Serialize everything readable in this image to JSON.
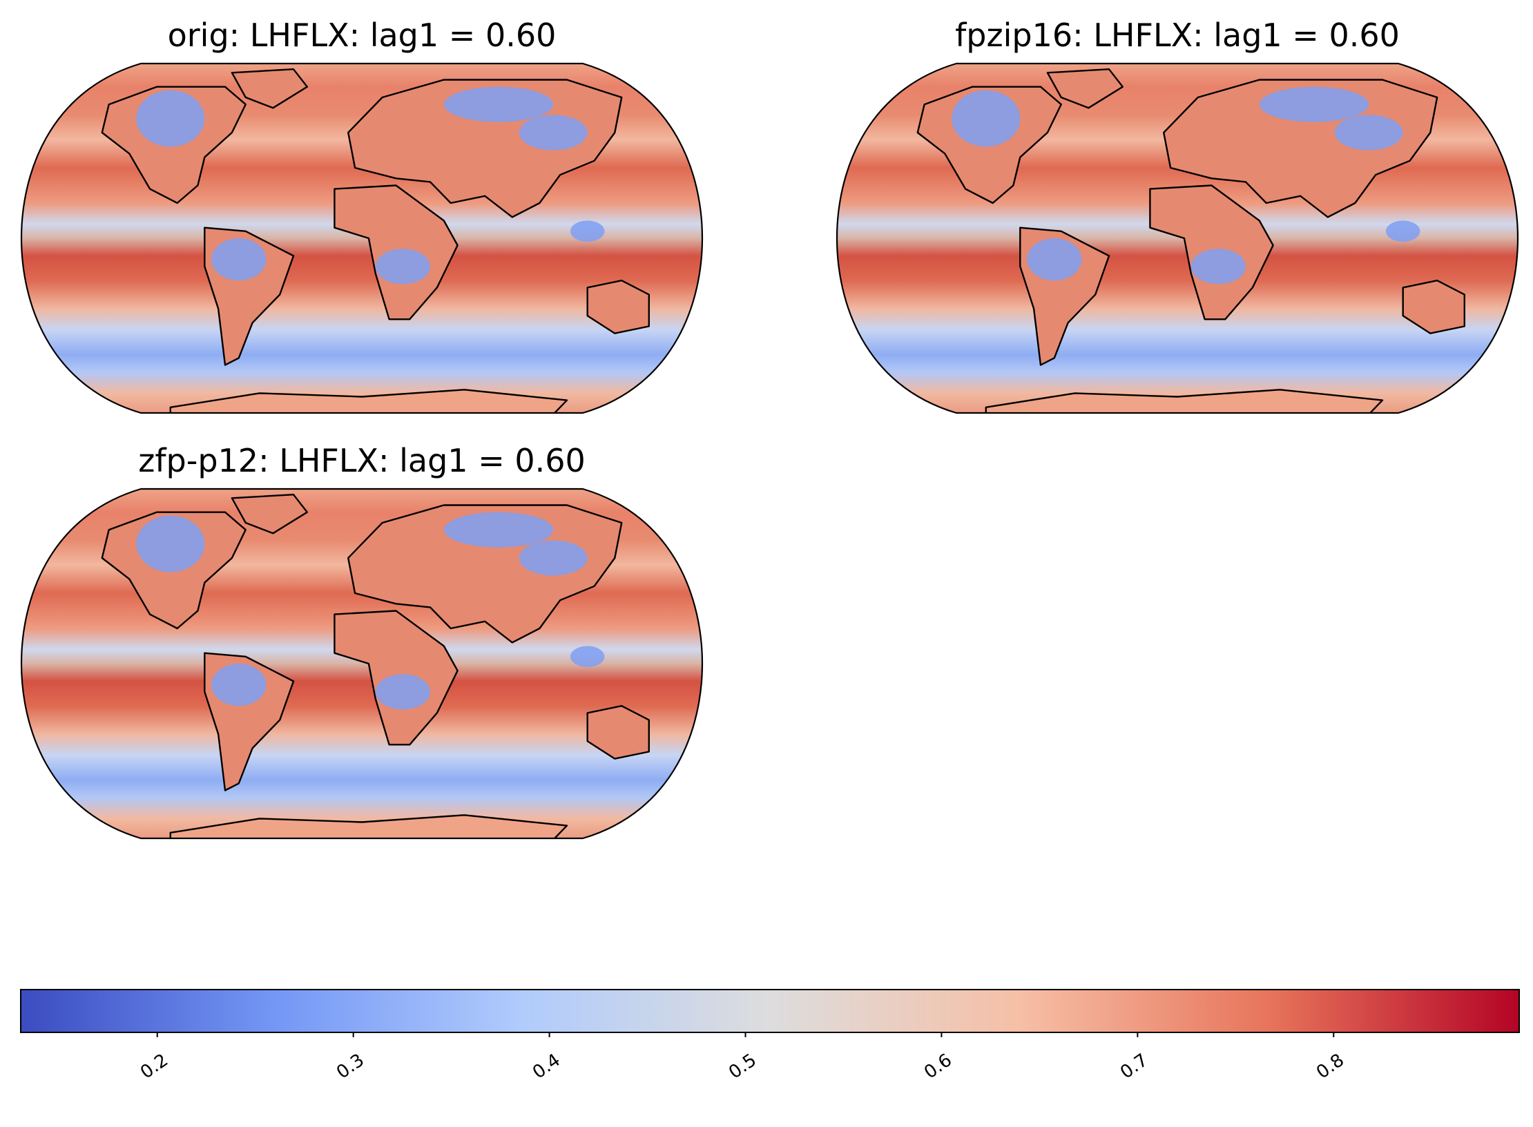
{
  "figure": {
    "panels": [
      {
        "title": "orig: LHFLX: lag1 = 0.60"
      },
      {
        "title": "fpzip16: LHFLX: lag1 = 0.60"
      },
      {
        "title": "zfp-p12: LHFLX: lag1 = 0.60"
      }
    ],
    "projection": "Robinson (global)",
    "colormap": "coolwarm",
    "colormap_colors": [
      "#3b4cc0",
      "#7396f5",
      "#b0cbfc",
      "#dddddd",
      "#f6bfa6",
      "#e7745b",
      "#b40426"
    ]
  },
  "colorbar": {
    "orientation": "horizontal",
    "placement": "bottom",
    "vmin": 0.13,
    "vmax": 0.895,
    "ticks": [
      "0.2",
      "0.3",
      "0.4",
      "0.5",
      "0.6",
      "0.7",
      "0.8"
    ],
    "tick_values": [
      0.2,
      0.3,
      0.4,
      0.5,
      0.6,
      0.7,
      0.8
    ]
  }
}
